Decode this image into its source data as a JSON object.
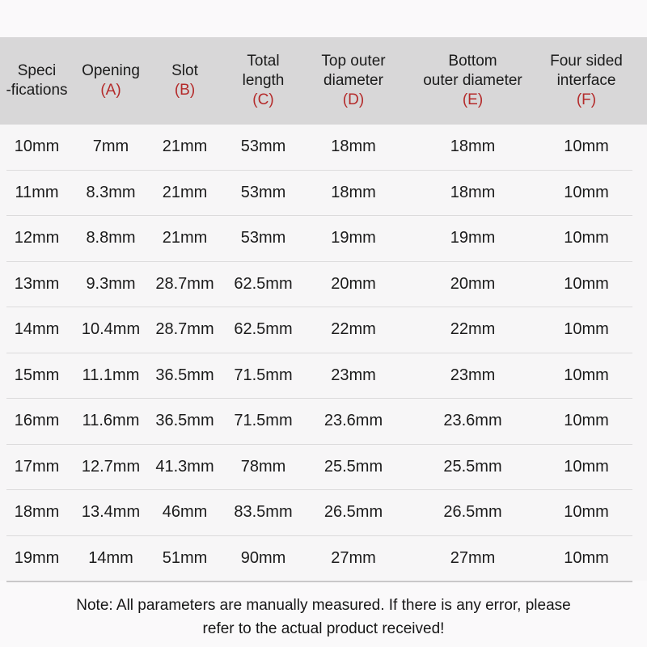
{
  "table": {
    "columns": [
      {
        "lines": [
          "Speci",
          "-fications"
        ],
        "letter": ""
      },
      {
        "lines": [
          "Opening"
        ],
        "letter": "(A)"
      },
      {
        "lines": [
          "Slot"
        ],
        "letter": "(B)"
      },
      {
        "lines": [
          "Total",
          "length"
        ],
        "letter": "(C)"
      },
      {
        "lines": [
          "Top outer",
          "diameter"
        ],
        "letter": "(D)"
      },
      {
        "lines": [
          "Bottom",
          "outer diameter"
        ],
        "letter": "(E)"
      },
      {
        "lines": [
          "Four sided",
          "interface"
        ],
        "letter": "(F)"
      }
    ],
    "rows": [
      [
        "10mm",
        "7mm",
        "21mm",
        "53mm",
        "18mm",
        "18mm",
        "10mm"
      ],
      [
        "11mm",
        "8.3mm",
        "21mm",
        "53mm",
        "18mm",
        "18mm",
        "10mm"
      ],
      [
        "12mm",
        "8.8mm",
        "21mm",
        "53mm",
        "19mm",
        "19mm",
        "10mm"
      ],
      [
        "13mm",
        "9.3mm",
        "28.7mm",
        "62.5mm",
        "20mm",
        "20mm",
        "10mm"
      ],
      [
        "14mm",
        "10.4mm",
        "28.7mm",
        "62.5mm",
        "22mm",
        "22mm",
        "10mm"
      ],
      [
        "15mm",
        "11.1mm",
        "36.5mm",
        "71.5mm",
        "23mm",
        "23mm",
        "10mm"
      ],
      [
        "16mm",
        "11.6mm",
        "36.5mm",
        "71.5mm",
        "23.6mm",
        "23.6mm",
        "10mm"
      ],
      [
        "17mm",
        "12.7mm",
        "41.3mm",
        "78mm",
        "25.5mm",
        "25.5mm",
        "10mm"
      ],
      [
        "18mm",
        "13.4mm",
        "46mm",
        "83.5mm",
        "26.5mm",
        "26.5mm",
        "10mm"
      ],
      [
        "19mm",
        "14mm",
        "51mm",
        "90mm",
        "27mm",
        "27mm",
        "10mm"
      ]
    ]
  },
  "note": {
    "line1": "Note: All parameters are manually measured. If there is any error, please",
    "line2": "refer to the actual product received!"
  },
  "colors": {
    "accent_red": "#b42a2a",
    "header_bg": "#d8d7d8",
    "page_bg": "#faf9fa",
    "row_divider": "#dcdbdc",
    "bottom_divider": "#c9c8c9"
  }
}
